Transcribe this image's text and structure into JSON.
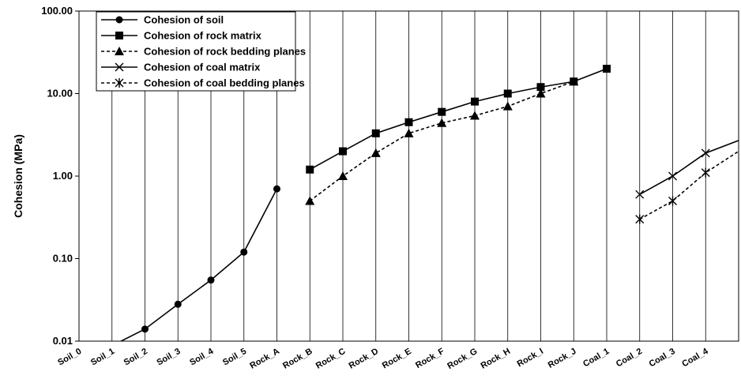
{
  "chart_data": {
    "type": "line",
    "title": "",
    "xlabel": "",
    "ylabel": "Cohesion (MPa)",
    "yscale": "log",
    "ylim": [
      0.01,
      100
    ],
    "yticks": [
      "0.01",
      "0.10",
      "1.00",
      "10.00",
      "100.00"
    ],
    "grid": "vertical",
    "legend_position": "top-left",
    "categories": [
      "Soil_0",
      "Soil_1",
      "Soil_2",
      "Soil_3",
      "Soil_4",
      "Soil_5",
      "Rock_A",
      "Rock_B",
      "Rock_C",
      "Rock_D",
      "Rock_E",
      "Rock_F",
      "Rock_G",
      "Rock_H",
      "Rock_I",
      "Rock_J",
      "Coal_1",
      "Coal_2",
      "Coal_3",
      "Coal_4"
    ],
    "series": [
      {
        "name": "Cohesion of soil",
        "marker": "circle",
        "dash": "solid",
        "x": [
          1,
          2,
          3,
          4,
          5,
          6
        ],
        "values": [
          0.0088,
          0.014,
          0.028,
          0.055,
          0.12,
          0.7
        ]
      },
      {
        "name": "Cohesion of rock matrix",
        "marker": "square",
        "dash": "solid",
        "x": [
          7,
          8,
          9,
          10,
          11,
          12,
          13,
          14,
          15,
          16,
          17
        ],
        "values": [
          1.2,
          2.0,
          3.3,
          4.5,
          6.0,
          8.0,
          10.0,
          12.0,
          14.0,
          20.0,
          null
        ]
      },
      {
        "name": "Cohesion of rock bedding planes",
        "marker": "triangle",
        "dash": "dashed",
        "x": [
          7,
          8,
          9,
          10,
          11,
          12,
          13,
          14,
          15
        ],
        "values": [
          0.5,
          1.0,
          1.9,
          3.3,
          4.4,
          5.4,
          7.0,
          10.0,
          14.0
        ]
      },
      {
        "name": "Cohesion of coal matrix",
        "marker": "x",
        "dash": "solid",
        "x": [
          17,
          18,
          19,
          20
        ],
        "values": [
          0.6,
          1.0,
          1.9,
          2.7
        ]
      },
      {
        "name": "Cohesion of coal bedding planes",
        "marker": "asterisk",
        "dash": "dashed",
        "x": [
          17,
          18,
          19,
          20
        ],
        "values": [
          0.3,
          0.5,
          1.1,
          2.0
        ]
      }
    ],
    "colors": {
      "line": "#000000",
      "grid": "#000000",
      "background": "#ffffff"
    }
  }
}
